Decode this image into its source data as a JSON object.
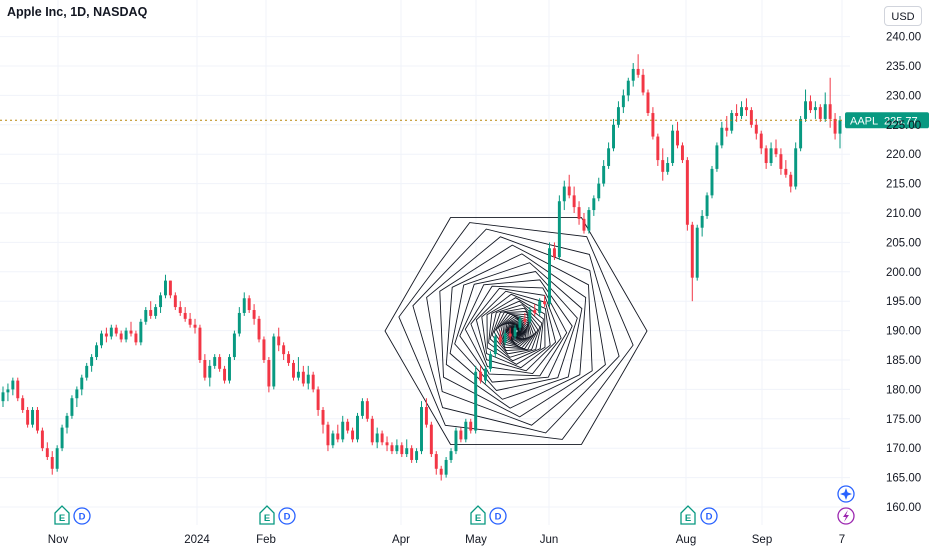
{
  "header": {
    "title": "Apple Inc, 1D, NASDAQ",
    "currency": "USD"
  },
  "price_badge": {
    "symbol": "AAPL",
    "value": "225.77",
    "color": "#089981"
  },
  "colors": {
    "up": "#089981",
    "down": "#f23645",
    "grid": "#f0f3fa",
    "price_line": "#b8860b",
    "hexagon": "#131722"
  },
  "event_markers": [
    {
      "type": "earnings",
      "text": "E",
      "date": "2023-11-02"
    },
    {
      "type": "dividend",
      "text": "D",
      "date": "2023-11-10"
    },
    {
      "type": "earnings",
      "text": "E",
      "date": "2024-02-01"
    },
    {
      "type": "dividend",
      "text": "D",
      "date": "2024-02-09"
    },
    {
      "type": "earnings",
      "text": "E",
      "date": "2024-05-02"
    },
    {
      "type": "dividend",
      "text": "D",
      "date": "2024-05-10"
    },
    {
      "type": "earnings",
      "text": "E",
      "date": "2024-08-01"
    },
    {
      "type": "dividend",
      "text": "D",
      "date": "2024-08-12"
    }
  ],
  "special_markers": [
    {
      "type": "event-star-icon"
    },
    {
      "type": "event-lightning-icon"
    }
  ],
  "chart_data": {
    "type": "candlestick",
    "title": "Apple Inc, 1D, NASDAQ",
    "ylim": [
      158,
      242
    ],
    "y_ticks": [
      "160.00",
      "165.00",
      "170.00",
      "175.00",
      "180.00",
      "185.00",
      "190.00",
      "195.00",
      "200.00",
      "205.00",
      "210.00",
      "215.00",
      "220.00",
      "225.00",
      "230.00",
      "235.00",
      "240.00"
    ],
    "x_ticks": [
      "Nov",
      "2024",
      "Feb",
      "Apr",
      "May",
      "Jun",
      "Aug",
      "Sep",
      "7"
    ],
    "last_price": 225.77,
    "grid": true,
    "series": [
      {
        "name": "AAPL",
        "ohlc": [
          [
            178,
            180.5,
            177,
            179.5
          ],
          [
            179.5,
            181,
            178,
            180
          ],
          [
            180,
            182,
            179,
            181.5
          ],
          [
            181.5,
            182,
            178,
            178.5
          ],
          [
            178.5,
            179,
            176,
            176.5
          ],
          [
            176.5,
            177,
            173.5,
            174
          ],
          [
            174,
            177,
            173.5,
            176.5
          ],
          [
            176.5,
            177,
            172.5,
            173
          ],
          [
            173,
            173.5,
            169.5,
            170
          ],
          [
            170,
            171,
            168,
            168.5
          ],
          [
            168.5,
            169.5,
            165.5,
            166.5
          ],
          [
            166.5,
            170.5,
            166,
            170
          ],
          [
            170,
            174,
            169.5,
            173.5
          ],
          [
            173.5,
            176,
            172.5,
            175.5
          ],
          [
            175.5,
            179,
            175,
            178.5
          ],
          [
            178.5,
            180.5,
            177,
            180
          ],
          [
            180,
            182.5,
            179,
            182
          ],
          [
            182,
            184.5,
            181.5,
            184
          ],
          [
            184,
            186,
            183,
            185.5
          ],
          [
            185.5,
            188,
            185,
            187.5
          ],
          [
            187.5,
            190,
            187,
            189.5
          ],
          [
            189.5,
            190.5,
            188,
            189
          ],
          [
            189,
            191,
            188.5,
            190.5
          ],
          [
            190.5,
            191,
            189,
            189.5
          ],
          [
            189.5,
            190,
            188,
            188.5
          ],
          [
            188.5,
            190.5,
            188,
            190
          ],
          [
            190,
            191.5,
            189,
            189.5
          ],
          [
            189.5,
            190,
            187.5,
            188
          ],
          [
            188,
            192,
            187.5,
            191.5
          ],
          [
            191.5,
            194,
            191,
            193.5
          ],
          [
            193.5,
            195,
            192,
            192.5
          ],
          [
            192.5,
            194.5,
            192,
            194
          ],
          [
            194,
            196.5,
            193,
            196
          ],
          [
            196,
            199.5,
            195.5,
            198.5
          ],
          [
            198.5,
            198.5,
            195.5,
            196
          ],
          [
            196,
            196.5,
            193.5,
            194
          ],
          [
            194,
            195,
            192.5,
            193
          ],
          [
            193,
            194,
            191.5,
            192
          ],
          [
            192,
            193,
            190.5,
            191
          ],
          [
            191,
            192,
            189.5,
            190.5
          ],
          [
            190.5,
            191,
            184.5,
            185
          ],
          [
            185,
            186,
            181.5,
            182
          ],
          [
            182,
            185,
            180.5,
            184
          ],
          [
            184,
            186,
            183.5,
            185.5
          ],
          [
            185.5,
            186,
            183,
            183.5
          ],
          [
            183.5,
            184,
            181,
            181.5
          ],
          [
            181.5,
            186,
            181,
            185.5
          ],
          [
            185.5,
            190,
            185,
            189.5
          ],
          [
            189.5,
            194,
            189,
            193
          ],
          [
            193,
            196.5,
            192.5,
            195.5
          ],
          [
            195.5,
            196,
            193,
            193.5
          ],
          [
            193.5,
            194.5,
            191,
            192
          ],
          [
            192,
            192.5,
            188,
            188.5
          ],
          [
            188.5,
            189,
            184.5,
            185
          ],
          [
            185,
            185.5,
            179.5,
            180.5
          ],
          [
            180.5,
            189.5,
            180,
            189
          ],
          [
            189,
            190.5,
            186.5,
            187.5
          ],
          [
            187.5,
            188,
            185,
            186
          ],
          [
            186,
            186.5,
            184,
            184.5
          ],
          [
            184.5,
            185,
            181.5,
            182
          ],
          [
            182,
            185.5,
            181.5,
            183
          ],
          [
            183,
            184,
            180.5,
            181
          ],
          [
            181,
            184,
            180,
            182.5
          ],
          [
            182.5,
            183,
            179.5,
            180
          ],
          [
            180,
            180.5,
            175.5,
            176.5
          ],
          [
            176.5,
            177,
            172.5,
            174
          ],
          [
            174,
            174.5,
            169.5,
            170.5
          ],
          [
            170.5,
            173,
            170,
            172.5
          ],
          [
            172.5,
            174,
            171,
            171.5
          ],
          [
            171.5,
            175.5,
            171,
            174.5
          ],
          [
            174.5,
            175,
            172.5,
            173
          ],
          [
            173,
            173.5,
            171,
            171.5
          ],
          [
            171.5,
            176,
            171,
            175.5
          ],
          [
            175.5,
            178.5,
            175,
            178
          ],
          [
            178,
            178.5,
            174.5,
            175
          ],
          [
            175,
            175.5,
            170.5,
            171
          ],
          [
            171,
            173.5,
            170,
            172.5
          ],
          [
            172.5,
            173,
            170.5,
            171
          ],
          [
            171,
            172,
            169.5,
            170.5
          ],
          [
            170.5,
            171,
            169,
            169.5
          ],
          [
            169.5,
            171.5,
            169,
            170.5
          ],
          [
            170.5,
            171,
            168.5,
            169
          ],
          [
            169,
            171.5,
            168.5,
            170
          ],
          [
            170,
            170.5,
            167.5,
            168
          ],
          [
            168,
            170,
            167.5,
            169.5
          ],
          [
            169.5,
            178,
            169,
            177
          ],
          [
            177,
            178.5,
            173.5,
            174
          ],
          [
            174,
            174.5,
            168.5,
            169
          ],
          [
            169,
            169.5,
            165.5,
            166.5
          ],
          [
            166.5,
            167,
            164.5,
            165.5
          ],
          [
            165.5,
            168.5,
            165,
            168
          ],
          [
            168,
            170,
            167.5,
            169.5
          ],
          [
            169.5,
            173.5,
            169,
            173
          ],
          [
            173,
            173.5,
            171,
            171.5
          ],
          [
            171.5,
            175,
            171,
            174.5
          ],
          [
            174.5,
            175,
            172.5,
            173
          ],
          [
            173,
            184,
            172.5,
            183
          ],
          [
            183,
            184,
            181,
            181.5
          ],
          [
            181.5,
            184,
            181,
            183.5
          ],
          [
            183.5,
            186.5,
            183,
            186
          ],
          [
            186,
            189.5,
            185.5,
            189
          ],
          [
            189,
            190,
            187.5,
            188
          ],
          [
            188,
            190,
            187.5,
            189.5
          ],
          [
            189.5,
            190.5,
            188.5,
            189
          ],
          [
            189,
            191,
            188.5,
            190.5
          ],
          [
            190.5,
            192.5,
            190,
            192
          ],
          [
            192,
            193,
            191,
            191.5
          ],
          [
            191.5,
            194,
            191,
            193.5
          ],
          [
            193.5,
            194.5,
            192.5,
            193
          ],
          [
            193,
            195.5,
            192.5,
            195
          ],
          [
            195,
            196,
            194,
            194.5
          ],
          [
            194.5,
            205,
            194,
            204
          ],
          [
            204,
            205,
            202,
            202.5
          ],
          [
            202.5,
            213,
            202,
            212
          ],
          [
            212,
            215.5,
            210.5,
            214.5
          ],
          [
            214.5,
            216.5,
            212.5,
            213
          ],
          [
            213,
            214.5,
            210,
            211
          ],
          [
            211,
            212,
            208,
            209
          ],
          [
            209,
            210,
            206.5,
            207
          ],
          [
            207,
            211,
            206.5,
            210.5
          ],
          [
            210.5,
            213,
            209.5,
            212.5
          ],
          [
            212.5,
            216,
            212,
            215
          ],
          [
            215,
            219,
            214.5,
            218
          ],
          [
            218,
            222,
            217.5,
            221
          ],
          [
            221,
            226,
            220.5,
            225
          ],
          [
            225,
            229,
            224.5,
            228
          ],
          [
            228,
            231,
            227,
            230
          ],
          [
            230,
            233,
            229,
            232.5
          ],
          [
            232.5,
            235.5,
            231.5,
            234.5
          ],
          [
            234.5,
            237,
            233,
            233.5
          ],
          [
            233.5,
            234.5,
            230,
            230.5
          ],
          [
            230.5,
            231,
            226.5,
            227
          ],
          [
            227,
            228,
            222.5,
            223
          ],
          [
            223,
            223.5,
            218,
            219
          ],
          [
            219,
            221,
            215.5,
            217
          ],
          [
            217,
            219.5,
            216.5,
            218.5
          ],
          [
            218.5,
            225,
            218,
            224
          ],
          [
            224,
            225.5,
            221,
            221.5
          ],
          [
            221.5,
            222,
            218.5,
            219
          ],
          [
            219,
            219.5,
            207,
            208
          ],
          [
            208,
            208.5,
            195,
            199
          ],
          [
            199,
            208,
            198.5,
            207.5
          ],
          [
            207.5,
            210.5,
            206,
            209.5
          ],
          [
            209.5,
            213.5,
            209,
            213
          ],
          [
            213,
            218,
            212.5,
            217.5
          ],
          [
            217.5,
            222,
            217,
            221.5
          ],
          [
            221.5,
            225.5,
            221,
            224.5
          ],
          [
            224.5,
            226.5,
            223,
            224
          ],
          [
            224,
            227.5,
            223.5,
            227
          ],
          [
            227,
            228.5,
            225.5,
            226.5
          ],
          [
            226.5,
            229,
            226,
            228
          ],
          [
            228,
            229.5,
            226.5,
            227.5
          ],
          [
            227.5,
            228,
            224.5,
            225
          ],
          [
            225,
            226,
            222.5,
            223.5
          ],
          [
            223.5,
            224,
            220,
            221
          ],
          [
            221,
            221.5,
            217.5,
            218.5
          ],
          [
            218.5,
            222,
            218,
            221
          ],
          [
            221,
            222.5,
            219.5,
            220
          ],
          [
            220,
            221,
            216.5,
            217.5
          ],
          [
            217.5,
            219,
            216,
            216.5
          ],
          [
            216.5,
            217,
            213.5,
            214.5
          ],
          [
            214.5,
            222,
            214,
            221
          ],
          [
            221,
            226.5,
            220.5,
            226
          ],
          [
            226,
            231,
            225.5,
            229
          ],
          [
            229,
            230,
            227,
            227.5
          ],
          [
            227.5,
            229,
            226,
            228
          ],
          [
            228,
            228.5,
            225.5,
            226
          ],
          [
            226,
            230.5,
            225.5,
            228.5
          ],
          [
            228.5,
            233,
            224.5,
            226
          ],
          [
            226,
            227,
            222.5,
            223.5
          ],
          [
            223.5,
            226.5,
            221,
            225.77
          ]
        ]
      }
    ]
  }
}
